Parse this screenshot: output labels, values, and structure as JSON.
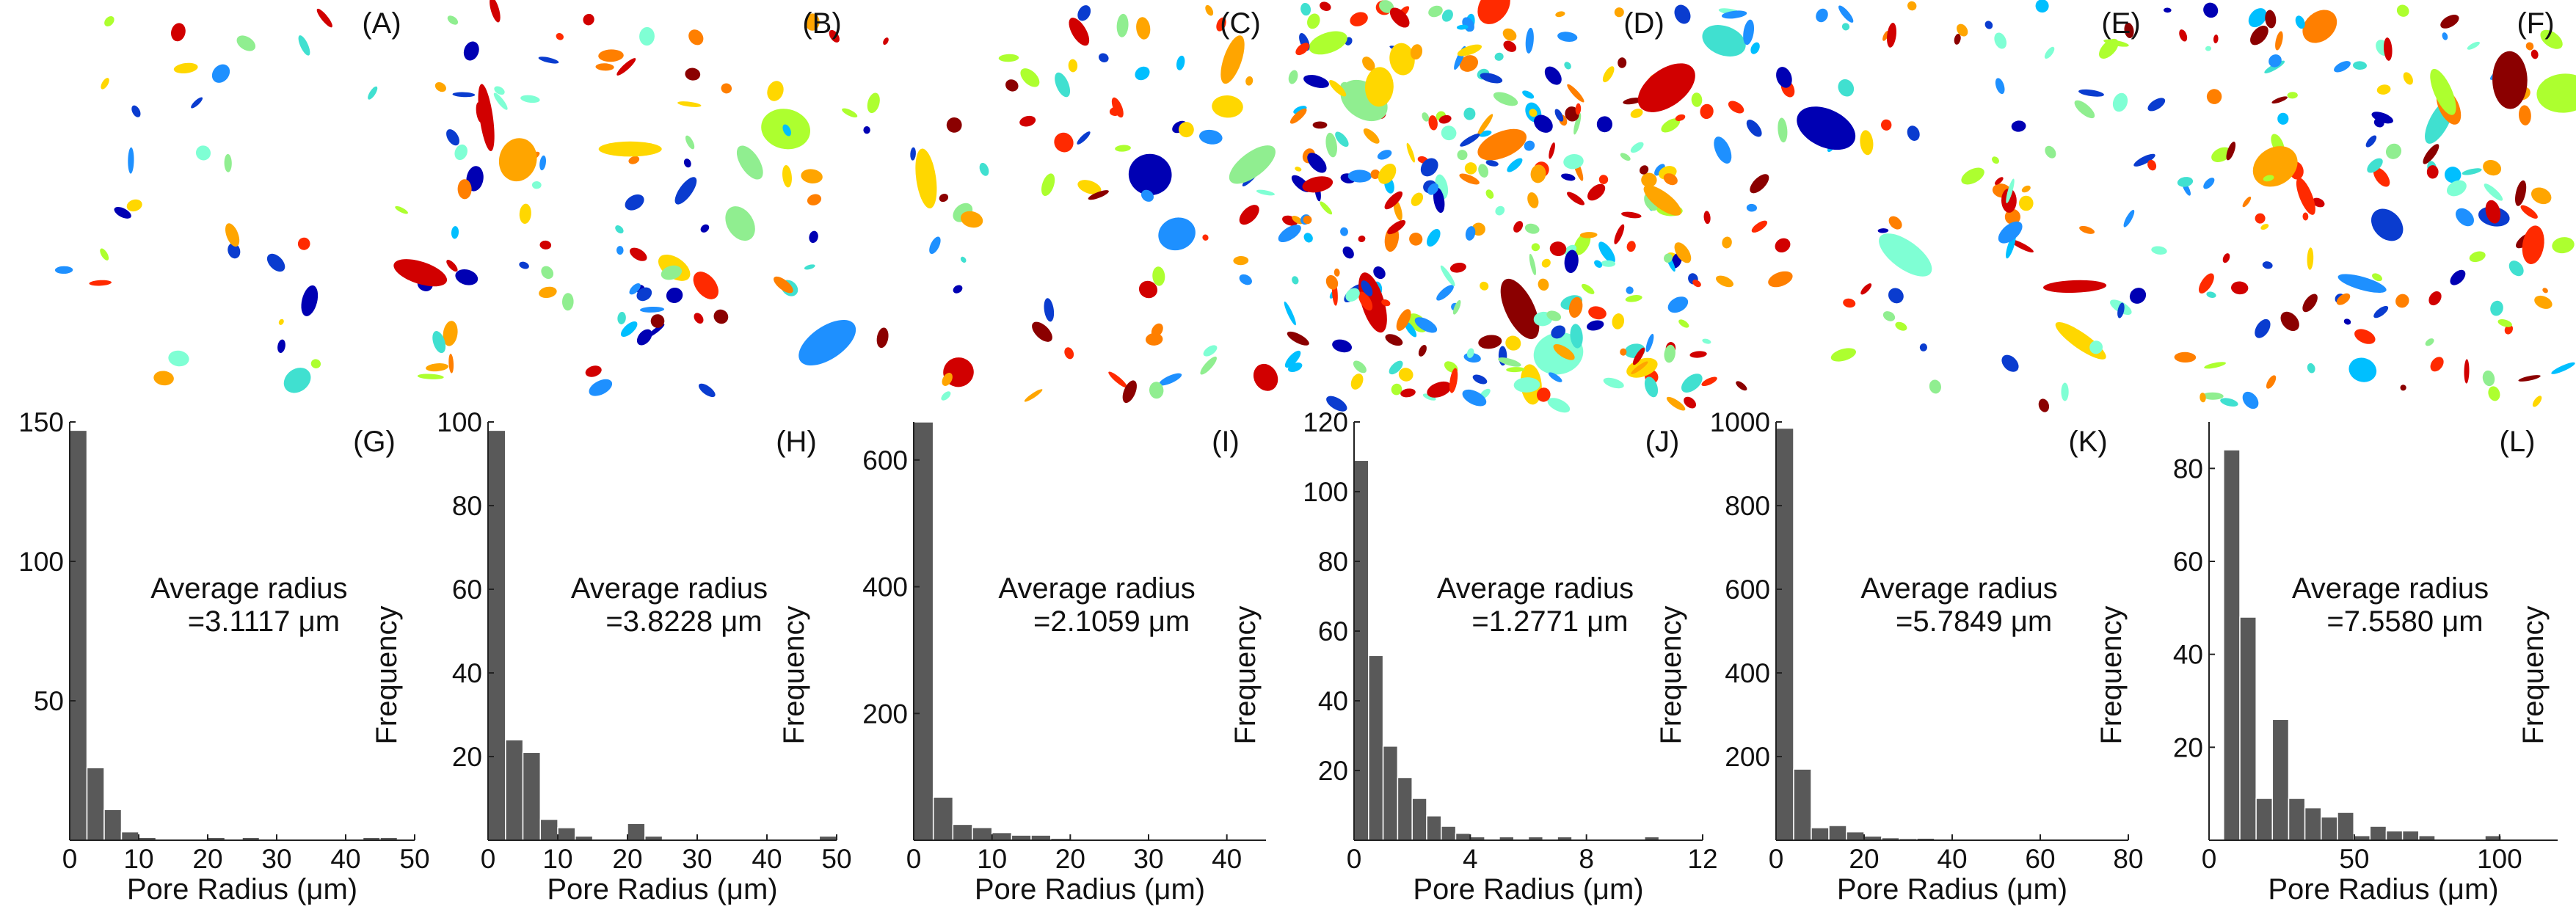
{
  "image_panels": [
    {
      "id": "A",
      "label": "(A)",
      "density": 0.35,
      "seed": 11
    },
    {
      "id": "B",
      "label": "(B)",
      "density": 1.0,
      "seed": 23
    },
    {
      "id": "C",
      "label": "(C)",
      "density": 0.8,
      "seed": 37
    },
    {
      "id": "D",
      "label": "(D)",
      "density": 3.0,
      "seed": 51
    },
    {
      "id": "E",
      "label": "(E)",
      "density": 0.9,
      "seed": 67
    },
    {
      "id": "F",
      "label": "(F)",
      "density": 1.4,
      "seed": 83
    }
  ],
  "pore_colors": [
    "#0000b3",
    "#0a3ccf",
    "#1e90ff",
    "#00bfff",
    "#40e0d0",
    "#7fffd4",
    "#90ee90",
    "#adff2f",
    "#ffd700",
    "#ffa500",
    "#ff7f00",
    "#ff2a00",
    "#d10000",
    "#8b0000"
  ],
  "bar_color": "#595959",
  "chart_data": [
    {
      "type": "bar",
      "panel_label": "(G)",
      "xlabel": "Pore Radius (μm)",
      "ylabel": "Frequency",
      "xlim": [
        0,
        50
      ],
      "ylim": [
        0,
        150
      ],
      "xticks": [
        0,
        10,
        20,
        30,
        40,
        50
      ],
      "yticks": [
        50,
        100,
        150
      ],
      "bin_width": 2.5,
      "bins": [
        {
          "x": 0,
          "y": 147
        },
        {
          "x": 2.5,
          "y": 26
        },
        {
          "x": 5,
          "y": 11
        },
        {
          "x": 7.5,
          "y": 3
        },
        {
          "x": 10,
          "y": 1
        },
        {
          "x": 20,
          "y": 1
        },
        {
          "x": 25,
          "y": 1
        },
        {
          "x": 42.5,
          "y": 1
        },
        {
          "x": 45,
          "y": 1
        }
      ],
      "annotation": {
        "line1": "Average radius",
        "line2": "=3.1117 μm"
      }
    },
    {
      "type": "bar",
      "panel_label": "(H)",
      "xlabel": "Pore Radius (μm)",
      "ylabel": "Frequency",
      "xlim": [
        0,
        50
      ],
      "ylim": [
        0,
        100
      ],
      "xticks": [
        0,
        10,
        20,
        30,
        40,
        50
      ],
      "yticks": [
        20,
        40,
        60,
        80,
        100
      ],
      "bin_width": 2.5,
      "bins": [
        {
          "x": 0,
          "y": 98
        },
        {
          "x": 2.5,
          "y": 24
        },
        {
          "x": 5,
          "y": 21
        },
        {
          "x": 7.5,
          "y": 5
        },
        {
          "x": 10,
          "y": 3
        },
        {
          "x": 12.5,
          "y": 1
        },
        {
          "x": 20,
          "y": 4
        },
        {
          "x": 22.5,
          "y": 1
        },
        {
          "x": 47.5,
          "y": 1
        }
      ],
      "annotation": {
        "line1": "Average radius",
        "line2": "=3.8228 μm"
      }
    },
    {
      "type": "bar",
      "panel_label": "(I)",
      "xlabel": "Pore Radius (μm)",
      "ylabel": "Frequency",
      "xlim": [
        0,
        45
      ],
      "ylim": [
        0,
        660
      ],
      "xticks": [
        0,
        10,
        20,
        30,
        40
      ],
      "yticks": [
        200,
        400,
        600
      ],
      "bin_width": 2.5,
      "bins": [
        {
          "x": 0,
          "y": 660
        },
        {
          "x": 2.5,
          "y": 68
        },
        {
          "x": 5,
          "y": 25
        },
        {
          "x": 7.5,
          "y": 20
        },
        {
          "x": 10,
          "y": 12
        },
        {
          "x": 12.5,
          "y": 8
        },
        {
          "x": 15,
          "y": 8
        },
        {
          "x": 17.5,
          "y": 3
        },
        {
          "x": 20,
          "y": 2
        },
        {
          "x": 22.5,
          "y": 1
        }
      ],
      "annotation": {
        "line1": "Average radius",
        "line2": "=2.1059 μm"
      }
    },
    {
      "type": "bar",
      "panel_label": "(J)",
      "xlabel": "Pore Radius (μm)",
      "ylabel": "Frequency",
      "xlim": [
        0,
        12
      ],
      "ylim": [
        0,
        120
      ],
      "xticks": [
        0,
        4,
        8,
        12
      ],
      "yticks": [
        20,
        40,
        60,
        80,
        100,
        120
      ],
      "bin_width": 0.5,
      "bins": [
        {
          "x": 0,
          "y": 109
        },
        {
          "x": 0.5,
          "y": 53
        },
        {
          "x": 1,
          "y": 27
        },
        {
          "x": 1.5,
          "y": 18
        },
        {
          "x": 2,
          "y": 12
        },
        {
          "x": 2.5,
          "y": 7
        },
        {
          "x": 3,
          "y": 4
        },
        {
          "x": 3.5,
          "y": 2
        },
        {
          "x": 4,
          "y": 1
        },
        {
          "x": 5,
          "y": 1
        },
        {
          "x": 6,
          "y": 1
        },
        {
          "x": 7,
          "y": 1
        },
        {
          "x": 10,
          "y": 1
        }
      ],
      "annotation": {
        "line1": "Average radius",
        "line2": "=1.2771 μm"
      }
    },
    {
      "type": "bar",
      "panel_label": "(K)",
      "xlabel": "Pore Radius (μm)",
      "ylabel": "Frequency",
      "xlim": [
        0,
        80
      ],
      "ylim": [
        0,
        1000
      ],
      "xticks": [
        0,
        20,
        40,
        60,
        80
      ],
      "yticks": [
        200,
        400,
        600,
        800,
        1000
      ],
      "bin_width": 4,
      "bins": [
        {
          "x": 0,
          "y": 985
        },
        {
          "x": 4,
          "y": 170
        },
        {
          "x": 8,
          "y": 30
        },
        {
          "x": 12,
          "y": 35
        },
        {
          "x": 16,
          "y": 20
        },
        {
          "x": 20,
          "y": 10
        },
        {
          "x": 24,
          "y": 6
        },
        {
          "x": 28,
          "y": 4
        },
        {
          "x": 32,
          "y": 5
        },
        {
          "x": 36,
          "y": 3
        },
        {
          "x": 40,
          "y": 2
        },
        {
          "x": 44,
          "y": 2
        },
        {
          "x": 56,
          "y": 1
        },
        {
          "x": 64,
          "y": 1
        },
        {
          "x": 76,
          "y": 1
        }
      ],
      "annotation": {
        "line1": "Average radius",
        "line2": "=5.7849 μm"
      }
    },
    {
      "type": "bar",
      "panel_label": "(L)",
      "xlabel": "Pore Radius (μm)",
      "ylabel": "Frequency",
      "xlim": [
        0,
        120
      ],
      "ylim": [
        0,
        90
      ],
      "xticks": [
        0,
        50,
        100
      ],
      "yticks": [
        20,
        40,
        60,
        80
      ],
      "bin_width": 5.6,
      "bins": [
        {
          "x": 5,
          "y": 84
        },
        {
          "x": 10.6,
          "y": 48
        },
        {
          "x": 16.2,
          "y": 9
        },
        {
          "x": 21.8,
          "y": 26
        },
        {
          "x": 27.4,
          "y": 9
        },
        {
          "x": 33,
          "y": 7
        },
        {
          "x": 38.6,
          "y": 5
        },
        {
          "x": 44.2,
          "y": 6
        },
        {
          "x": 49.8,
          "y": 1
        },
        {
          "x": 55.4,
          "y": 3
        },
        {
          "x": 61,
          "y": 2
        },
        {
          "x": 66.6,
          "y": 2
        },
        {
          "x": 72.2,
          "y": 1
        },
        {
          "x": 95,
          "y": 1
        }
      ],
      "annotation": {
        "line1": "Average radius",
        "line2": "=7.5580 μm"
      }
    }
  ]
}
